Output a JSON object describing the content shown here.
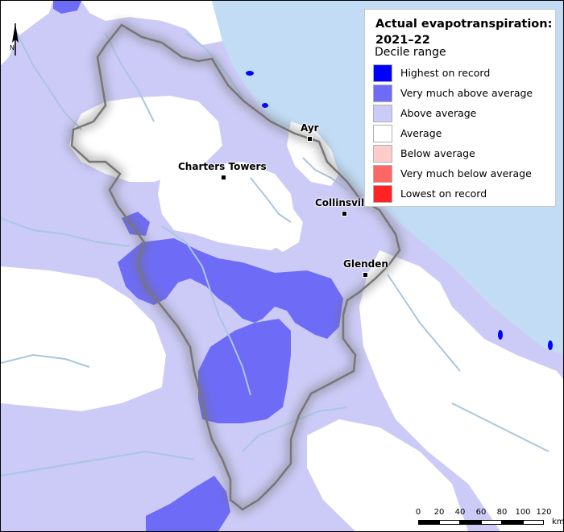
{
  "legend": {
    "title": "Actual evapotranspiration: 2021–22",
    "subtitle": "Decile range",
    "items": [
      {
        "label": "Highest on record",
        "color": "#0000ff"
      },
      {
        "label": "Very much above average",
        "color": "#6e6cf7"
      },
      {
        "label": "Above average",
        "color": "#cccbf7"
      },
      {
        "label": "Average",
        "color": "#ffffff"
      },
      {
        "label": "Below average",
        "color": "#ffcccc"
      },
      {
        "label": "Very much below average",
        "color": "#ff6666"
      },
      {
        "label": "Lowest on record",
        "color": "#ff2222"
      }
    ]
  },
  "towns": {
    "ayr": "Ayr",
    "charters_towers": "Charters Towers",
    "collinsville": "Collinsvil",
    "glenden": "Glenden"
  },
  "north_arrow": {
    "label": "N"
  },
  "scale": {
    "ticks": [
      "0",
      "20",
      "40",
      "60",
      "80",
      "100",
      "120"
    ],
    "unit": "km"
  },
  "colors": {
    "sea": "#c2dcf5",
    "river": "#a9c6e1",
    "boundary": "#777777"
  }
}
